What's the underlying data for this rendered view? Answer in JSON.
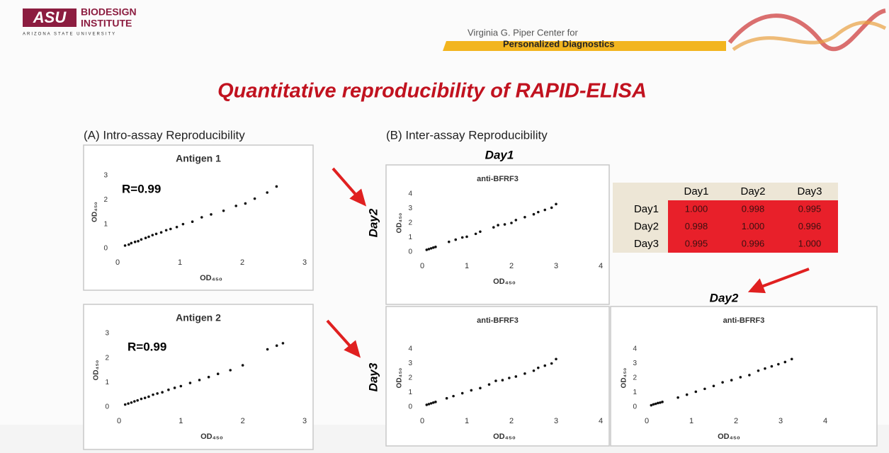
{
  "header": {
    "logo_mark": "ASU",
    "logo_line1": "BIODESIGN",
    "logo_line2": "INSTITUTE",
    "logo_sub": "ARIZONA STATE UNIVERSITY",
    "center_line1": "Virginia G. Piper Center for",
    "center_line2": "Personalized Diagnostics"
  },
  "title": "Quantitative reproducibility of RAPID-ELISA",
  "section_a": "(A) Intro-assay Reproducibility",
  "section_b": "(B) Inter-assay Reproducibility",
  "day_labels": {
    "top": "Day1",
    "left_upper": "Day2",
    "left_lower": "Day3",
    "right": "Day2"
  },
  "table": {
    "columns": [
      "Day1",
      "Day2",
      "Day3"
    ],
    "rows": [
      {
        "label": "Day1",
        "values": [
          "1.000",
          "0.998",
          "0.995"
        ]
      },
      {
        "label": "Day2",
        "values": [
          "0.998",
          "1.000",
          "0.996"
        ]
      },
      {
        "label": "Day3",
        "values": [
          "0.995",
          "0.996",
          "1.000"
        ]
      }
    ]
  },
  "chart_data": [
    {
      "type": "scatter",
      "title": "Antigen 1",
      "annotation": "R=0.99",
      "x_label": "OD₄₅₀",
      "y_label": "OD₄₅₀",
      "color": "#111111",
      "x": [
        0.12,
        0.18,
        0.22,
        0.28,
        0.33,
        0.38,
        0.45,
        0.5,
        0.56,
        0.62,
        0.7,
        0.78,
        0.85,
        0.95,
        1.05,
        1.2,
        1.35,
        1.5,
        1.7,
        1.9,
        2.05,
        2.2,
        2.4,
        2.55
      ],
      "y": [
        0.12,
        0.16,
        0.22,
        0.27,
        0.3,
        0.37,
        0.43,
        0.48,
        0.55,
        0.6,
        0.66,
        0.75,
        0.8,
        0.88,
        1.0,
        1.1,
        1.28,
        1.4,
        1.55,
        1.75,
        1.85,
        2.05,
        2.3,
        2.55
      ],
      "xlim": [
        0,
        3
      ],
      "ylim": [
        0,
        3
      ],
      "xticks": [
        0,
        1,
        2,
        3
      ],
      "yticks": [
        0,
        1,
        2,
        3
      ]
    },
    {
      "type": "scatter",
      "title": "Antigen 2",
      "annotation": "R=0.99",
      "x_label": "OD₄₅₀",
      "y_label": "OD₄₅₀",
      "color": "#111111",
      "x": [
        0.1,
        0.15,
        0.2,
        0.25,
        0.3,
        0.36,
        0.42,
        0.48,
        0.55,
        0.62,
        0.7,
        0.8,
        0.9,
        1.0,
        1.15,
        1.3,
        1.45,
        1.6,
        1.8,
        2.0,
        2.4,
        2.55,
        2.65
      ],
      "y": [
        0.1,
        0.14,
        0.18,
        0.23,
        0.27,
        0.33,
        0.37,
        0.42,
        0.5,
        0.55,
        0.6,
        0.7,
        0.78,
        0.85,
        0.98,
        1.1,
        1.22,
        1.35,
        1.5,
        1.7,
        2.35,
        2.5,
        2.6
      ],
      "xlim": [
        0,
        3
      ],
      "ylim": [
        0,
        3
      ],
      "xticks": [
        0,
        1,
        2,
        3
      ],
      "yticks": [
        0,
        1,
        2,
        3
      ]
    },
    {
      "type": "scatter",
      "title": "anti-BFRF3",
      "x_label": "OD₄₅₀",
      "y_label": "OD₄₅₀",
      "color": "#111111",
      "x": [
        0.1,
        0.15,
        0.2,
        0.25,
        0.3,
        0.6,
        0.75,
        0.9,
        1.0,
        1.2,
        1.3,
        1.6,
        1.7,
        1.85,
        2.0,
        2.1,
        2.3,
        2.5,
        2.6,
        2.75,
        2.9,
        3.0
      ],
      "y": [
        0.15,
        0.2,
        0.25,
        0.3,
        0.35,
        0.7,
        0.85,
        1.0,
        1.05,
        1.25,
        1.4,
        1.7,
        1.85,
        1.9,
        2.0,
        2.2,
        2.4,
        2.6,
        2.75,
        2.9,
        3.05,
        3.3
      ],
      "xlim": [
        0,
        4
      ],
      "ylim": [
        0,
        4
      ],
      "xticks": [
        0,
        1,
        2,
        3,
        4
      ],
      "yticks": [
        0,
        1,
        2,
        3,
        4
      ]
    },
    {
      "type": "scatter",
      "title": "anti-BFRF3",
      "x_label": "OD₄₅₀",
      "y_label": "OD₄₅₀",
      "color": "#111111",
      "x": [
        0.1,
        0.15,
        0.2,
        0.25,
        0.3,
        0.55,
        0.7,
        0.9,
        1.1,
        1.3,
        1.5,
        1.65,
        1.8,
        1.95,
        2.1,
        2.3,
        2.5,
        2.6,
        2.75,
        2.9,
        3.0
      ],
      "y": [
        0.15,
        0.2,
        0.25,
        0.3,
        0.35,
        0.6,
        0.75,
        0.95,
        1.15,
        1.3,
        1.55,
        1.8,
        1.85,
        2.0,
        2.1,
        2.3,
        2.5,
        2.7,
        2.85,
        3.0,
        3.3
      ],
      "xlim": [
        0,
        4
      ],
      "ylim": [
        0,
        4
      ],
      "xticks": [
        0,
        1,
        2,
        3,
        4
      ],
      "yticks": [
        0,
        1,
        2,
        3,
        4
      ]
    },
    {
      "type": "scatter",
      "title": "anti-BFRF3",
      "x_label": "OD₄₅₀",
      "y_label": "OD₄₅₀",
      "color": "#111111",
      "x": [
        0.1,
        0.15,
        0.2,
        0.25,
        0.3,
        0.35,
        0.7,
        0.9,
        1.1,
        1.3,
        1.5,
        1.7,
        1.9,
        2.1,
        2.3,
        2.5,
        2.65,
        2.8,
        2.95,
        3.1,
        3.25
      ],
      "y": [
        0.12,
        0.18,
        0.22,
        0.27,
        0.3,
        0.35,
        0.65,
        0.85,
        1.05,
        1.25,
        1.45,
        1.7,
        1.85,
        2.05,
        2.2,
        2.5,
        2.65,
        2.8,
        2.95,
        3.1,
        3.3
      ],
      "xlim": [
        0,
        4
      ],
      "ylim": [
        0,
        4
      ],
      "xticks": [
        0,
        1,
        2,
        3,
        4
      ],
      "yticks": [
        0,
        1,
        2,
        3,
        4
      ]
    }
  ]
}
